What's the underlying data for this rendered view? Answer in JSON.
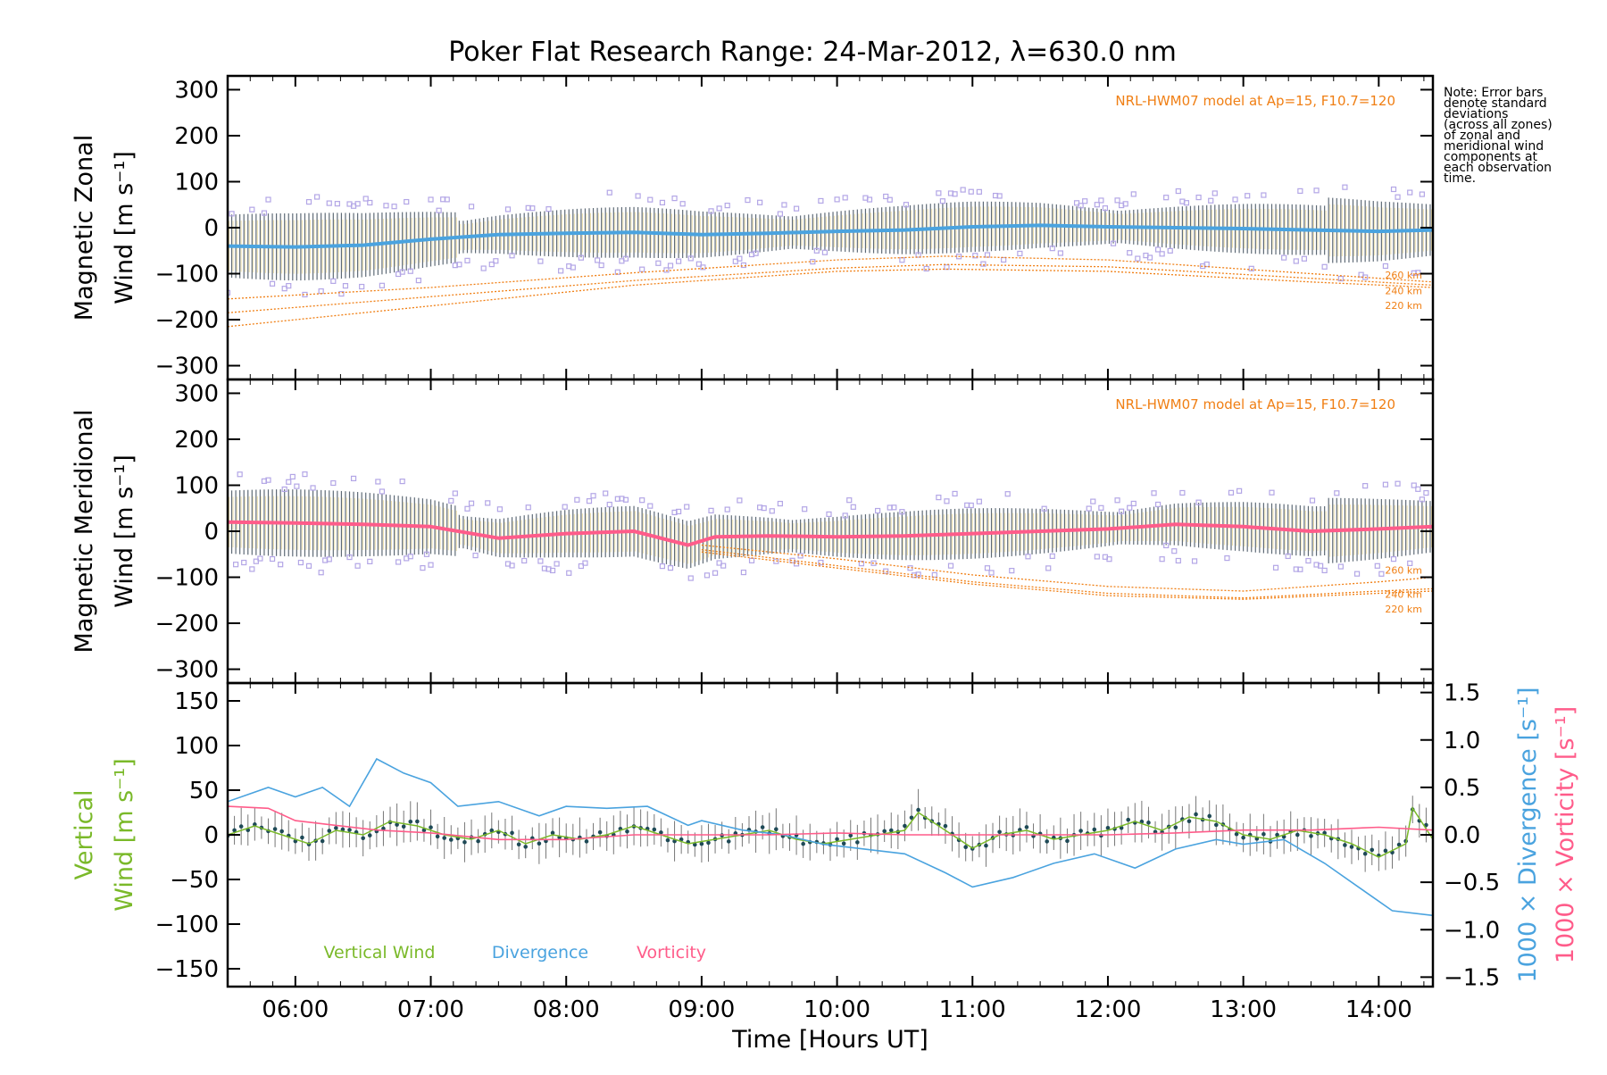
{
  "title": "Poker Flat Research Range: 24-Mar-2012, λ=630.0 nm",
  "note": "Note: Error bars\ndenote standard\ndeviations\n(across all zones)\nof zonal and\nmeridional wind\ncomponents at\neach observation\ntime.",
  "model_label": "NRL-HWM07 model at Ap=15, F10.7=120",
  "colors": {
    "zonal": "#4aa3df",
    "meridional": "#ff5c8a",
    "vertical": "#7ab929",
    "divergence": "#4aa3df",
    "vorticity": "#ff5c8a",
    "model": "#f07f14",
    "scatter": "#b3a6e6",
    "dot": "#1f4a57",
    "errbar": "#555555"
  },
  "chart_data": [
    {
      "type": "line",
      "panel": "zonal",
      "ylabel": [
        "Magnetic Zonal",
        "Wind [m s⁻¹]"
      ],
      "ylim": [
        -330,
        330
      ],
      "yticks": [
        300,
        200,
        100,
        0,
        -100,
        -200,
        -300
      ],
      "ytick_labels": [
        "300",
        "200",
        "100",
        "0",
        "−100",
        "−200",
        "−300"
      ],
      "xlim": [
        5.5,
        14.4
      ],
      "series_x": [
        5.5,
        6.0,
        6.5,
        7.0,
        7.5,
        8.0,
        8.5,
        9.0,
        9.5,
        10.0,
        10.5,
        11.0,
        11.5,
        12.0,
        12.5,
        13.0,
        13.5,
        14.0,
        14.4
      ],
      "series_y": [
        -40,
        -42,
        -38,
        -25,
        -15,
        -12,
        -10,
        -15,
        -12,
        -8,
        -5,
        2,
        5,
        2,
        0,
        -2,
        -5,
        -8,
        -5
      ],
      "models": [
        {
          "label": "260 km",
          "x": [
            5.5,
            7.0,
            8.5,
            10.0,
            10.8,
            12.0,
            13.5,
            14.4
          ],
          "y": [
            -155,
            -130,
            -98,
            -70,
            -62,
            -70,
            -100,
            -118
          ]
        },
        {
          "label": "240 km",
          "x": [
            5.5,
            7.0,
            8.5,
            10.0,
            10.8,
            12.0,
            13.5,
            14.4
          ],
          "y": [
            -185,
            -150,
            -115,
            -88,
            -80,
            -85,
            -110,
            -125
          ]
        },
        {
          "label": "220 km",
          "x": [
            5.5,
            7.0,
            8.5,
            10.0,
            10.8,
            12.0,
            13.5,
            14.4
          ],
          "y": [
            -215,
            -170,
            -125,
            -95,
            -90,
            -95,
            -118,
            -130
          ]
        }
      ]
    },
    {
      "type": "line",
      "panel": "meridional",
      "ylabel": [
        "Magnetic Meridional",
        "Wind [m s⁻¹]"
      ],
      "ylim": [
        -330,
        330
      ],
      "yticks": [
        300,
        200,
        100,
        0,
        -100,
        -200,
        -300
      ],
      "ytick_labels": [
        "300",
        "200",
        "100",
        "0",
        "−100",
        "−200",
        "−300"
      ],
      "xlim": [
        5.5,
        14.4
      ],
      "series_x": [
        5.5,
        6.0,
        6.5,
        7.0,
        7.5,
        8.0,
        8.5,
        8.9,
        9.1,
        9.5,
        10.0,
        10.5,
        11.0,
        11.5,
        12.0,
        12.5,
        13.0,
        13.5,
        14.0,
        14.4
      ],
      "series_y": [
        20,
        18,
        15,
        10,
        -15,
        -5,
        0,
        -30,
        -12,
        -10,
        -12,
        -10,
        -5,
        0,
        5,
        15,
        10,
        0,
        5,
        10
      ],
      "models": [
        {
          "label": "260 km",
          "x": [
            9.0,
            10.0,
            11.0,
            12.0,
            13.0,
            14.0,
            14.4
          ],
          "y": [
            -30,
            -60,
            -95,
            -120,
            -130,
            -110,
            -100
          ]
        },
        {
          "label": "240 km",
          "x": [
            9.0,
            10.0,
            11.0,
            12.0,
            13.0,
            14.0,
            14.4
          ],
          "y": [
            -40,
            -75,
            -110,
            -135,
            -145,
            -130,
            -125
          ]
        },
        {
          "label": "220 km",
          "x": [
            9.0,
            10.0,
            11.0,
            12.0,
            13.0,
            14.0,
            14.4
          ],
          "y": [
            -45,
            -80,
            -115,
            -140,
            -148,
            -135,
            -130
          ]
        }
      ]
    },
    {
      "type": "line",
      "panel": "vertical",
      "ylabel_left": [
        "Vertical",
        "Wind [m s⁻¹]"
      ],
      "ylabel_right_div": "1000 × Divergence [s⁻¹]",
      "ylabel_right_vort": "1000 × Vorticity [s⁻¹]",
      "ylim": [
        -170,
        170
      ],
      "yticks": [
        150,
        100,
        50,
        0,
        -50,
        -100,
        -150
      ],
      "ytick_labels": [
        "150",
        "100",
        "50",
        "0",
        "−50",
        "−100",
        "−150"
      ],
      "y2lim": [
        -1.6,
        1.6
      ],
      "y2ticks": [
        1.5,
        1.0,
        0.5,
        0.0,
        -0.5,
        -1.0,
        -1.5
      ],
      "y2tick_labels": [
        "1.5",
        "1.0",
        "0.5",
        "0.0",
        "−0.5",
        "−1.0",
        "−1.5"
      ],
      "xlim": [
        5.5,
        14.4
      ],
      "xticks": [
        6,
        7,
        8,
        9,
        10,
        11,
        12,
        13,
        14
      ],
      "xtick_labels": [
        "06:00",
        "07:00",
        "08:00",
        "09:00",
        "10:00",
        "11:00",
        "12:00",
        "13:00",
        "14:00"
      ],
      "xlabel": "Time [Hours UT]",
      "legend": [
        "Vertical Wind",
        "Divergence",
        "Vorticity"
      ],
      "vertical_wind": {
        "x": [
          5.5,
          5.7,
          5.9,
          6.1,
          6.3,
          6.5,
          6.7,
          6.9,
          7.1,
          7.3,
          7.5,
          7.7,
          7.9,
          8.1,
          8.3,
          8.5,
          8.7,
          8.9,
          9.1,
          9.3,
          9.5,
          9.7,
          9.9,
          10.1,
          10.3,
          10.5,
          10.6,
          10.8,
          11.0,
          11.2,
          11.4,
          11.6,
          11.8,
          12.0,
          12.2,
          12.4,
          12.6,
          12.8,
          13.0,
          13.2,
          13.4,
          13.6,
          13.8,
          14.0,
          14.2,
          14.25,
          14.4
        ],
        "y": [
          0,
          10,
          0,
          -10,
          5,
          0,
          15,
          10,
          0,
          -5,
          5,
          -10,
          0,
          -5,
          0,
          10,
          0,
          -10,
          -5,
          0,
          5,
          -5,
          -10,
          -5,
          0,
          5,
          25,
          5,
          -15,
          0,
          5,
          -5,
          0,
          5,
          15,
          5,
          20,
          15,
          0,
          -5,
          5,
          0,
          -10,
          -25,
          -10,
          30,
          -5
        ]
      },
      "divergence": {
        "x": [
          5.5,
          5.8,
          6.0,
          6.2,
          6.4,
          6.6,
          6.8,
          7.0,
          7.2,
          7.5,
          7.8,
          8.0,
          8.3,
          8.6,
          8.9,
          9.0,
          9.3,
          9.6,
          9.9,
          10.2,
          10.5,
          10.8,
          11.0,
          11.3,
          11.6,
          11.9,
          12.2,
          12.5,
          12.8,
          13.0,
          13.3,
          13.6,
          13.9,
          14.1,
          14.4
        ],
        "y": [
          0.35,
          0.5,
          0.4,
          0.5,
          0.3,
          0.8,
          0.65,
          0.55,
          0.3,
          0.35,
          0.2,
          0.3,
          0.28,
          0.3,
          0.1,
          0.15,
          0.05,
          0.0,
          -0.1,
          -0.15,
          -0.2,
          -0.4,
          -0.55,
          -0.45,
          -0.3,
          -0.2,
          -0.35,
          -0.15,
          -0.05,
          -0.1,
          -0.05,
          -0.3,
          -0.6,
          -0.8,
          -0.85
        ]
      },
      "vorticity": {
        "x": [
          5.5,
          5.8,
          6.0,
          6.3,
          6.6,
          7.0,
          7.5,
          8.0,
          8.5,
          9.0,
          9.5,
          10.0,
          10.5,
          11.0,
          11.5,
          12.0,
          12.5,
          13.0,
          13.5,
          14.0,
          14.4
        ],
        "y": [
          0.3,
          0.28,
          0.15,
          0.1,
          0.05,
          0.02,
          -0.05,
          -0.05,
          0.0,
          0.0,
          0.0,
          0.02,
          0.0,
          0.0,
          0.0,
          0.0,
          0.02,
          0.05,
          0.05,
          0.08,
          0.05
        ]
      }
    }
  ]
}
